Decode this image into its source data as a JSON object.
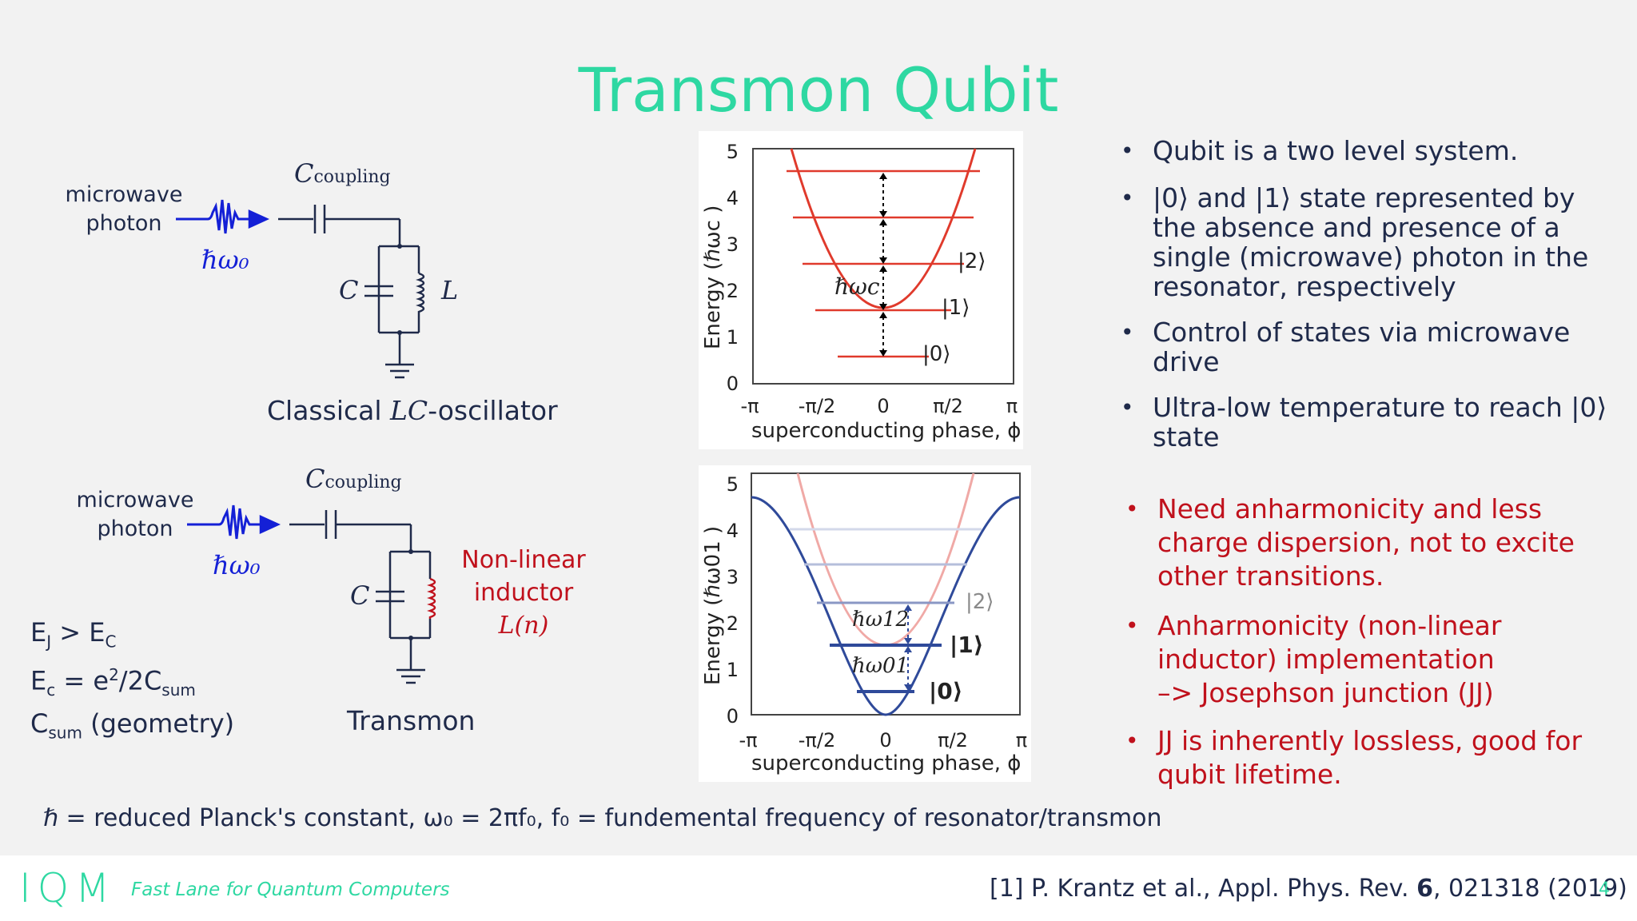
{
  "slide": {
    "title": "Transmon Qubit",
    "page_number": "4"
  },
  "circuit_top": {
    "photon_line1": "microwave",
    "photon_line2": "photon",
    "hw0": "ℏω₀",
    "c_coupling": "C",
    "c_coupling_sub": "coupling",
    "cap_label": "C",
    "ind_label": "L",
    "caption": "Classical LC-oscillator"
  },
  "circuit_bottom": {
    "photon_line1": "microwave",
    "photon_line2": "photon",
    "hw0": "ℏω₀",
    "c_coupling": "C",
    "c_coupling_sub": "coupling",
    "cap_label": "C",
    "nl_line1": "Non-linear",
    "nl_line2": "inductor",
    "nl_line3": "L(n)",
    "caption": "Transmon"
  },
  "equations": {
    "line1": "EJ > EC",
    "line2": "Ec = e²/2Csum",
    "line3": "Csum (geometry)"
  },
  "plot_top": {
    "ylabel": "Energy (ℏωc )",
    "xlabel": "superconducting phase, ϕ",
    "yticks": [
      "0",
      "1",
      "2",
      "3",
      "4",
      "5"
    ],
    "xticks": [
      "-π",
      "-π/2",
      "0",
      "π/2",
      "π"
    ],
    "levels": [
      "|0⟩",
      "|1⟩",
      "|2⟩"
    ],
    "spacing_label": "ℏωc",
    "colors": {
      "curve": "#e03a2c",
      "levels": "#e03a2c"
    }
  },
  "plot_bottom": {
    "ylabel": "Energy (ℏω01 )",
    "xlabel": "superconducting phase, ϕ",
    "yticks": [
      "0",
      "1",
      "2",
      "3",
      "4",
      "5"
    ],
    "xticks": [
      "-π",
      "-π/2",
      "0",
      "π/2",
      "π"
    ],
    "levels": [
      "|0⟩",
      "|1⟩",
      "|2⟩"
    ],
    "label_w12": "ℏω12",
    "label_w01": "ℏω01",
    "colors": {
      "curve": "#2f4a9a",
      "faint": "#f0a9a6"
    }
  },
  "bullets_blue": [
    {
      "lines": [
        "Qubit is a two level system."
      ]
    },
    {
      "lines": [
        "|0⟩ and |1⟩ state represented by",
        "the absence and presence of a",
        "single (microwave) photon in the",
        "resonator, respectively"
      ]
    },
    {
      "lines": [
        "Control of states via microwave",
        "drive"
      ]
    },
    {
      "lines": [
        "Ultra-low temperature to reach |0⟩",
        "state"
      ]
    }
  ],
  "bullets_red": [
    {
      "lines": [
        "Need anharmonicity and less",
        "charge dispersion, not to excite",
        "other transitions."
      ]
    },
    {
      "lines": [
        "Anharmonicity (non-linear",
        "inductor) implementation",
        "–> Josephson junction (JJ)"
      ]
    },
    {
      "lines": [
        "JJ is inherently lossless, good for",
        "qubit lifetime."
      ]
    }
  ],
  "footnote": "ℏ = reduced Planck's constant, ω₀ = 2πf₀, f₀ = fundemental frequency of resonator/transmon",
  "footer": {
    "logo": "IQM",
    "tagline": "Fast Lane for Quantum Computers",
    "reference_pre": "[1] P. Krantz et al., Appl. Phys. Rev. ",
    "reference_bold": "6",
    "reference_post": ", 021318 (2019)",
    "colors": {
      "logo": "#2ed8a2",
      "tagline": "#2ed8a2"
    }
  }
}
